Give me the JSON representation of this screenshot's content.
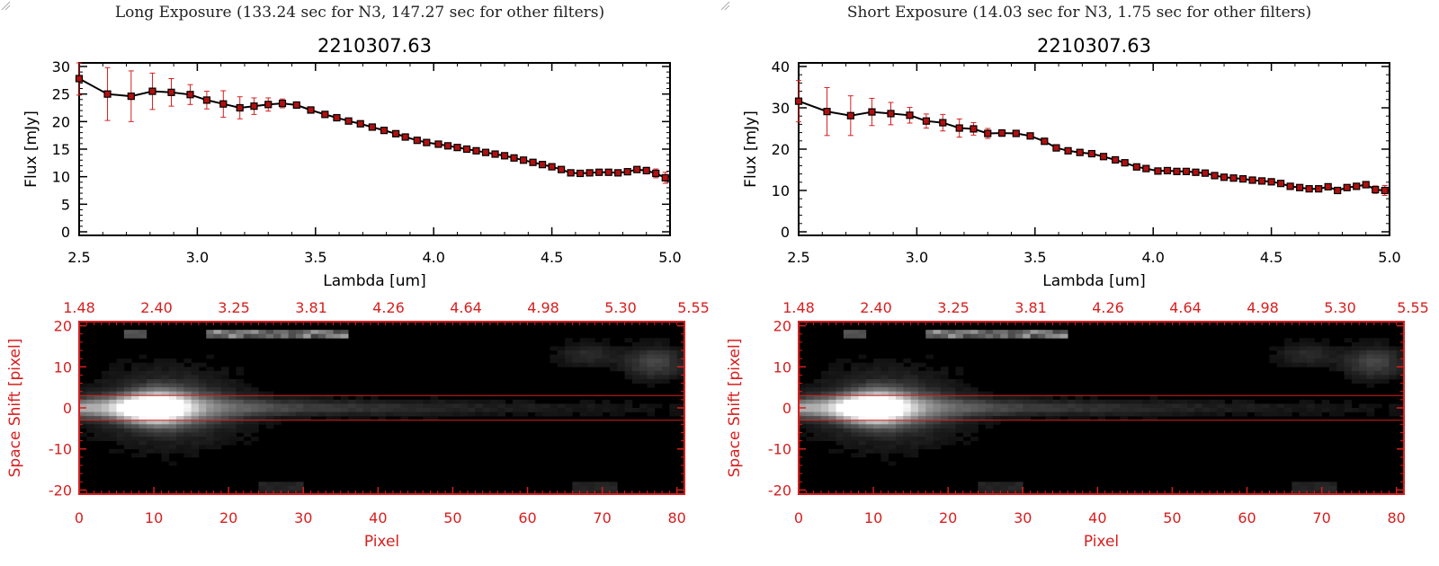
{
  "colors": {
    "axis_black": "#000000",
    "accent_red": "#d81e1e",
    "marker_red": "#b01010",
    "image_bg": "#000000"
  },
  "panels": [
    {
      "id": "long",
      "exposure_title": "Long Exposure (133.24 sec for N3, 147.27 sec for other filters)",
      "spectrum_title": "2210307.63",
      "spectrum_xlabel": "Lambda [um]",
      "spectrum_ylabel": "Flux [mJy]",
      "image_xlabel": "Pixel",
      "image_ylabel": "Space Shift [pixel]"
    },
    {
      "id": "short",
      "exposure_title": "Short Exposure (14.03 sec for N3, 1.75 sec for other filters)",
      "spectrum_title": "2210307.63",
      "spectrum_xlabel": "Lambda [um]",
      "spectrum_ylabel": "Flux [mJy]",
      "image_xlabel": "Pixel",
      "image_ylabel": "Space Shift [pixel]"
    }
  ],
  "chart_data": [
    {
      "type": "line",
      "panel": "long",
      "title": "2210307.63",
      "xlabel": "Lambda [um]",
      "ylabel": "Flux [mJy]",
      "xlim": [
        2.5,
        5.0
      ],
      "ylim": [
        0,
        30
      ],
      "xticks": [
        "2.5",
        "3.0",
        "3.5",
        "4.0",
        "4.5",
        "5.0"
      ],
      "yticks": [
        "0",
        "5",
        "10",
        "15",
        "20",
        "25",
        "30"
      ],
      "markers": "filled squares with red error bars",
      "series": [
        {
          "x": [
            2.5,
            2.62,
            2.72,
            2.81,
            2.89,
            2.97,
            3.04,
            3.11,
            3.18,
            3.24,
            3.3,
            3.36,
            3.42,
            3.48,
            3.54,
            3.59,
            3.64,
            3.69,
            3.74,
            3.79,
            3.84,
            3.88,
            3.93,
            3.97,
            4.02,
            4.06,
            4.1,
            4.14,
            4.18,
            4.22,
            4.26,
            4.3,
            4.34,
            4.38,
            4.42,
            4.46,
            4.5,
            4.54,
            4.58,
            4.62,
            4.66,
            4.7,
            4.74,
            4.78,
            4.82,
            4.86,
            4.9,
            4.94,
            4.98
          ],
          "y": [
            27.8,
            25.0,
            24.6,
            25.5,
            25.3,
            24.9,
            23.9,
            23.2,
            22.5,
            22.8,
            23.1,
            23.3,
            23.0,
            22.1,
            21.3,
            20.7,
            20.1,
            19.6,
            19.0,
            18.4,
            17.8,
            17.2,
            16.6,
            16.2,
            15.9,
            15.6,
            15.3,
            15.0,
            14.7,
            14.4,
            14.1,
            13.8,
            13.4,
            13.0,
            12.6,
            12.2,
            11.8,
            11.3,
            10.7,
            10.6,
            10.7,
            10.8,
            10.8,
            10.7,
            10.9,
            11.3,
            11.1,
            10.6,
            9.8
          ],
          "yerr": [
            3.0,
            4.8,
            4.6,
            3.3,
            2.5,
            1.8,
            1.6,
            2.4,
            2.0,
            1.5,
            1.2,
            0.8,
            0.4,
            0.3,
            0.3,
            0.3,
            0.3,
            0.3,
            0.3,
            0.3,
            0.3,
            0.3,
            0.3,
            0.3,
            0.3,
            0.3,
            0.3,
            0.3,
            0.3,
            0.3,
            0.3,
            0.3,
            0.3,
            0.3,
            0.3,
            0.3,
            0.3,
            0.3,
            0.3,
            0.3,
            0.3,
            0.3,
            0.3,
            0.3,
            0.3,
            0.5,
            0.6,
            0.8,
            1.0
          ]
        }
      ]
    },
    {
      "type": "line",
      "panel": "short",
      "title": "2210307.63",
      "xlabel": "Lambda [um]",
      "ylabel": "Flux [mJy]",
      "xlim": [
        2.5,
        5.0
      ],
      "ylim": [
        0,
        40
      ],
      "xticks": [
        "2.5",
        "3.0",
        "3.5",
        "4.0",
        "4.5",
        "5.0"
      ],
      "yticks": [
        "0",
        "10",
        "20",
        "30",
        "40"
      ],
      "markers": "filled squares with red error bars",
      "series": [
        {
          "x": [
            2.5,
            2.62,
            2.72,
            2.81,
            2.89,
            2.97,
            3.04,
            3.11,
            3.18,
            3.24,
            3.3,
            3.36,
            3.42,
            3.48,
            3.54,
            3.59,
            3.64,
            3.69,
            3.74,
            3.79,
            3.84,
            3.88,
            3.93,
            3.97,
            4.02,
            4.06,
            4.1,
            4.14,
            4.18,
            4.22,
            4.26,
            4.3,
            4.34,
            4.38,
            4.42,
            4.46,
            4.5,
            4.54,
            4.58,
            4.62,
            4.66,
            4.7,
            4.74,
            4.78,
            4.82,
            4.86,
            4.9,
            4.94,
            4.98
          ],
          "y": [
            31.6,
            29.1,
            28.1,
            29.0,
            28.6,
            28.2,
            26.8,
            26.4,
            25.1,
            24.9,
            23.8,
            23.9,
            23.8,
            23.2,
            21.9,
            20.3,
            19.6,
            19.2,
            18.9,
            18.2,
            17.4,
            16.7,
            15.7,
            15.3,
            14.7,
            14.8,
            14.6,
            14.6,
            14.4,
            14.2,
            13.6,
            13.2,
            13.0,
            12.8,
            12.5,
            12.3,
            12.1,
            11.7,
            11.0,
            10.7,
            10.4,
            10.4,
            10.9,
            10.0,
            10.7,
            11.0,
            11.4,
            10.2,
            10.0
          ],
          "yerr": [
            5.0,
            5.8,
            4.8,
            3.3,
            2.7,
            1.9,
            1.7,
            2.0,
            2.2,
            1.5,
            1.2,
            0.8,
            0.5,
            0.4,
            0.4,
            0.4,
            0.4,
            0.4,
            0.4,
            0.4,
            0.4,
            0.4,
            0.4,
            0.4,
            0.4,
            0.4,
            0.4,
            0.4,
            0.4,
            0.4,
            0.4,
            0.4,
            0.4,
            0.4,
            0.4,
            0.4,
            0.4,
            0.4,
            0.4,
            0.4,
            0.4,
            0.4,
            0.4,
            0.4,
            0.4,
            0.6,
            0.7,
            0.9,
            1.2
          ]
        }
      ]
    },
    {
      "type": "heatmap",
      "panel": "long",
      "xlabel": "Pixel",
      "ylabel": "Space Shift [pixel]",
      "xlim": [
        0,
        81
      ],
      "ylim": [
        -21,
        21
      ],
      "xticks": [
        "0",
        "10",
        "20",
        "30",
        "40",
        "50",
        "60",
        "70",
        "80"
      ],
      "yticks": [
        "-20",
        "-10",
        "0",
        "10",
        "20"
      ],
      "top_axis_ticks": [
        "1.48",
        "2.40",
        "3.25",
        "3.81",
        "4.26",
        "4.64",
        "4.98",
        "5.30",
        "5.55"
      ],
      "extraction_aperture": [
        -3,
        3
      ],
      "colormap": "grayscale"
    },
    {
      "type": "heatmap",
      "panel": "short",
      "xlabel": "Pixel",
      "ylabel": "Space Shift [pixel]",
      "xlim": [
        0,
        81
      ],
      "ylim": [
        -21,
        21
      ],
      "xticks": [
        "0",
        "10",
        "20",
        "30",
        "40",
        "50",
        "60",
        "70",
        "80"
      ],
      "yticks": [
        "-20",
        "-10",
        "0",
        "10",
        "20"
      ],
      "top_axis_ticks": [
        "1.48",
        "2.40",
        "3.25",
        "3.81",
        "4.26",
        "4.64",
        "4.98",
        "5.30",
        "5.55"
      ],
      "extraction_aperture": [
        -3,
        3
      ],
      "colormap": "grayscale"
    }
  ]
}
